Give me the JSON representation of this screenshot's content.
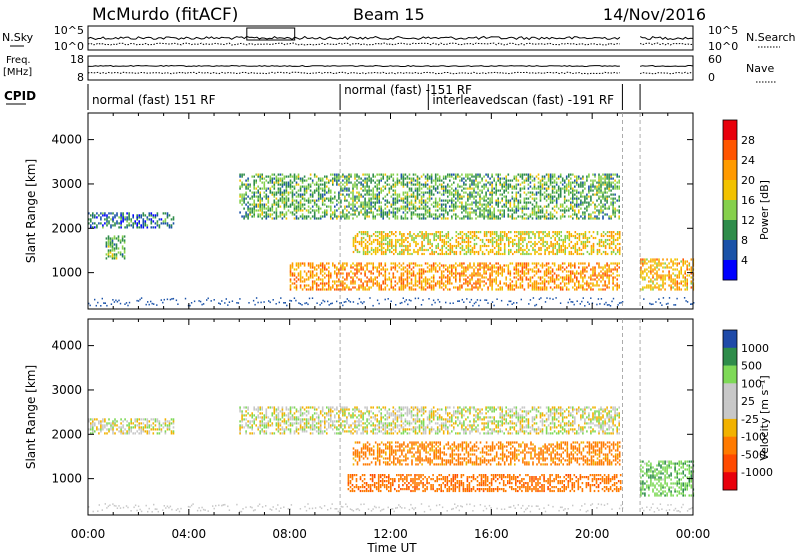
{
  "header": {
    "station": "McMurdo (fitACF)",
    "beam": "Beam 15",
    "date": "14/Nov/2016"
  },
  "noise_panel": {
    "left_label": "N.Sky",
    "right_label": "N.Search",
    "left_ticks": [
      "10^5",
      "10^0"
    ],
    "right_ticks": [
      "10^5",
      "10^0"
    ]
  },
  "freq_panel": {
    "left_label_1": "Freq.",
    "left_label_2": "[MHz]",
    "right_label": "Nave",
    "left_ticks": [
      "18",
      "8"
    ],
    "right_ticks": [
      "60",
      "0"
    ]
  },
  "cpid_panel": {
    "label": "CPID",
    "segments": [
      {
        "text": "normal (fast) 151 RF",
        "start": "00:00",
        "end": "10:00"
      },
      {
        "text": "normal (fast) -151 RF",
        "start": "10:00",
        "end": "21:10"
      },
      {
        "text": "interleavedscan (fast) -191 RF",
        "start": "13:30",
        "end": "21:10"
      }
    ]
  },
  "time_axis": {
    "label": "Time UT",
    "ticks": [
      "00:00",
      "04:00",
      "08:00",
      "12:00",
      "16:00",
      "20:00",
      "00:00"
    ]
  },
  "chart_data": [
    {
      "type": "heatmap",
      "name": "power-panel",
      "ylabel": "Slant Range [km]",
      "yticks": [
        1000,
        2000,
        3000,
        4000
      ],
      "ylim": [
        180,
        4600
      ],
      "xlim_hours": [
        0,
        24
      ],
      "colorbar_label": "Power [dB]",
      "colorbar_ticks": [
        "28",
        "24",
        "20",
        "16",
        "12",
        "8",
        "4"
      ],
      "colorbar_colors": [
        "#e8000b",
        "#ff5500",
        "#ff9a00",
        "#f2c200",
        "#86d04c",
        "#2e8c4a",
        "#1a52a8",
        "#0000ff"
      ],
      "data_gap_hours": [
        21.2,
        21.9
      ],
      "scatter_bands": [
        {
          "range_km": [
            2000,
            2350
          ],
          "start_h": 0.0,
          "end_h": 3.4,
          "level": 6
        },
        {
          "range_km": [
            1300,
            1800
          ],
          "start_h": 0.7,
          "end_h": 1.5,
          "level": 10
        },
        {
          "range_km": [
            600,
            1200
          ],
          "start_h": 8.0,
          "end_h": 21.1,
          "level": 20
        },
        {
          "range_km": [
            1400,
            1900
          ],
          "start_h": 10.5,
          "end_h": 21.1,
          "level": 16
        },
        {
          "range_km": [
            2200,
            3200
          ],
          "start_h": 6.0,
          "end_h": 21.1,
          "level": 10
        },
        {
          "range_km": [
            600,
            1300
          ],
          "start_h": 21.9,
          "end_h": 24.0,
          "level": 18
        }
      ]
    },
    {
      "type": "heatmap",
      "name": "velocity-panel",
      "ylabel": "Slant Range [km]",
      "yticks": [
        1000,
        2000,
        3000,
        4000
      ],
      "ylim": [
        180,
        4600
      ],
      "xlim_hours": [
        0,
        24
      ],
      "colorbar_label": "Velocity [m s⁻¹]",
      "colorbar_ticks": [
        "1000",
        "500",
        "100",
        "25",
        "-25",
        "-100",
        "-500",
        "-1000"
      ],
      "colorbar_colors": [
        "#1f4aa8",
        "#2e8c4a",
        "#7ed957",
        "#c8c8c8",
        "#c8c8c8",
        "#f2b200",
        "#ff7a00",
        "#ff4a00",
        "#e8000b"
      ],
      "data_gap_hours": [
        21.2,
        21.9
      ],
      "scatter_bands": [
        {
          "range_km": [
            2000,
            2350
          ],
          "start_h": 0.0,
          "end_h": 3.4,
          "velocity": 0
        },
        {
          "range_km": [
            700,
            1100
          ],
          "start_h": 10.3,
          "end_h": 21.1,
          "velocity": -500
        },
        {
          "range_km": [
            1300,
            1800
          ],
          "start_h": 10.5,
          "end_h": 21.1,
          "velocity": -300
        },
        {
          "range_km": [
            2000,
            2600
          ],
          "start_h": 6.0,
          "end_h": 21.1,
          "velocity": 0
        },
        {
          "range_km": [
            600,
            1400
          ],
          "start_h": 21.9,
          "end_h": 24.0,
          "velocity": 200
        }
      ]
    }
  ]
}
